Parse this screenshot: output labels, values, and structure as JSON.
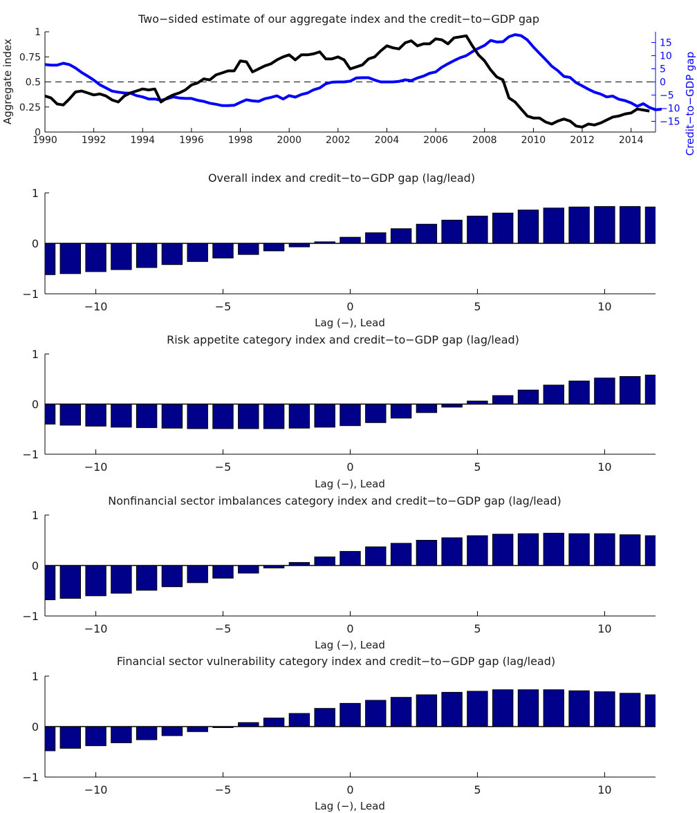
{
  "chart_data": [
    {
      "type": "line",
      "title": "Two−sided estimate of our aggregate index and the credit−to−GDP gap",
      "xlabel": "",
      "ylabel": "Aggregate index",
      "ylabel_right": "Credit−to−GDP gap",
      "xlim": [
        1990,
        2015
      ],
      "ylim": [
        0,
        1
      ],
      "ylim_right": [
        -19.08,
        19.08
      ],
      "x_ticks": [
        1990,
        1992,
        1994,
        1996,
        1998,
        2000,
        2002,
        2004,
        2006,
        2008,
        2010,
        2012,
        2014
      ],
      "y_ticks": [
        0,
        0.25,
        0.5,
        0.75,
        1
      ],
      "y_tick_labels": [
        "0",
        "0.25",
        "0.5",
        "0.75",
        "1"
      ],
      "y_ticks_right": [
        -15,
        -10,
        -5,
        0,
        5,
        10,
        15
      ],
      "y_tick_labels_right": [
        "−15",
        "−10",
        "−5",
        "0",
        "5",
        "10",
        "15"
      ],
      "reference_line": {
        "y": 0.5,
        "style": "dashed",
        "color": "#000000"
      },
      "grid": false,
      "x_start": 1990,
      "x_step": 0.25,
      "series": [
        {
          "name": "Aggregate index",
          "axis": "left",
          "color": "#000000",
          "values": [
            0.36,
            0.34,
            0.28,
            0.27,
            0.33,
            0.4,
            0.41,
            0.39,
            0.37,
            0.38,
            0.36,
            0.32,
            0.3,
            0.36,
            0.39,
            0.41,
            0.43,
            0.42,
            0.43,
            0.3,
            0.34,
            0.37,
            0.39,
            0.42,
            0.47,
            0.49,
            0.53,
            0.52,
            0.57,
            0.59,
            0.61,
            0.61,
            0.71,
            0.7,
            0.6,
            0.63,
            0.66,
            0.68,
            0.72,
            0.75,
            0.77,
            0.72,
            0.77,
            0.77,
            0.78,
            0.8,
            0.73,
            0.73,
            0.75,
            0.72,
            0.63,
            0.65,
            0.67,
            0.73,
            0.75,
            0.81,
            0.86,
            0.84,
            0.83,
            0.89,
            0.91,
            0.86,
            0.88,
            0.88,
            0.93,
            0.92,
            0.88,
            0.94,
            0.95,
            0.96,
            0.86,
            0.77,
            0.71,
            0.62,
            0.55,
            0.52,
            0.34,
            0.3,
            0.23,
            0.16,
            0.14,
            0.14,
            0.1,
            0.08,
            0.11,
            0.13,
            0.11,
            0.06,
            0.05,
            0.08,
            0.07,
            0.09,
            0.12,
            0.15,
            0.16,
            0.18,
            0.19,
            0.23,
            0.22,
            0.21
          ]
        },
        {
          "name": "Credit-to-GDP gap",
          "axis": "right",
          "color": "#0000ff",
          "values": [
            6.6,
            6.4,
            6.4,
            7.1,
            6.6,
            5.3,
            3.6,
            2.2,
            0.7,
            -1.1,
            -2.3,
            -3.5,
            -3.9,
            -4.2,
            -4.3,
            -5.2,
            -5.7,
            -6.5,
            -6.5,
            -7.0,
            -6.4,
            -5.7,
            -6.1,
            -6.3,
            -6.3,
            -7.0,
            -7.4,
            -8.1,
            -8.5,
            -9.0,
            -9.0,
            -8.9,
            -7.8,
            -6.8,
            -7.2,
            -7.4,
            -6.4,
            -5.9,
            -5.3,
            -6.5,
            -5.2,
            -5.8,
            -4.8,
            -4.2,
            -3.0,
            -2.3,
            -0.7,
            -0.1,
            0.0,
            0.0,
            0.3,
            1.5,
            1.6,
            1.6,
            0.7,
            0.0,
            0.0,
            0.0,
            0.2,
            0.8,
            0.5,
            1.5,
            2.2,
            3.3,
            3.8,
            5.6,
            6.9,
            8.1,
            9.2,
            10.0,
            11.5,
            12.8,
            13.9,
            15.8,
            15.2,
            15.3,
            17.2,
            18.0,
            17.6,
            16.0,
            13.3,
            10.9,
            8.5,
            6.0,
            4.3,
            2.1,
            1.7,
            -0.3,
            -1.5,
            -2.8,
            -3.9,
            -4.6,
            -5.7,
            -5.4,
            -6.6,
            -7.1,
            -8.0,
            -9.3,
            -8.3,
            -9.7,
            -10.6,
            -10.4
          ]
        }
      ]
    },
    {
      "type": "bar",
      "title": "Overall index and credit−to−GDP gap (lag/lead)",
      "xlabel": "Lag (−), Lead",
      "ylabel": "",
      "xlim": [
        -12,
        12
      ],
      "ylim": [
        -1,
        1
      ],
      "x_ticks": [
        -10,
        -5,
        0,
        5,
        10
      ],
      "x_tick_labels": [
        "−10",
        "−5",
        "0",
        "5",
        "10"
      ],
      "y_ticks": [
        -1,
        0,
        1
      ],
      "y_tick_labels": [
        "−1",
        "0",
        "1"
      ],
      "grid": false,
      "bar_color": "#00008b",
      "categories": [
        -12,
        -11,
        -10,
        -9,
        -8,
        -7,
        -6,
        -5,
        -4,
        -3,
        -2,
        -1,
        0,
        1,
        2,
        3,
        4,
        5,
        6,
        7,
        8,
        9,
        10,
        11,
        12
      ],
      "values": [
        -0.62,
        -0.6,
        -0.56,
        -0.52,
        -0.48,
        -0.42,
        -0.36,
        -0.29,
        -0.22,
        -0.15,
        -0.07,
        0.03,
        0.12,
        0.21,
        0.29,
        0.38,
        0.46,
        0.54,
        0.6,
        0.66,
        0.7,
        0.72,
        0.73,
        0.73,
        0.72
      ]
    },
    {
      "type": "bar",
      "title": "Risk appetite category index and credit−to−GDP gap (lag/lead)",
      "xlabel": "Lag (−), Lead",
      "ylabel": "",
      "xlim": [
        -12,
        12
      ],
      "ylim": [
        -1,
        1
      ],
      "x_ticks": [
        -10,
        -5,
        0,
        5,
        10
      ],
      "x_tick_labels": [
        "−10",
        "−5",
        "0",
        "5",
        "10"
      ],
      "y_ticks": [
        -1,
        0,
        1
      ],
      "y_tick_labels": [
        "−1",
        "0",
        "1"
      ],
      "grid": false,
      "bar_color": "#00008b",
      "categories": [
        -12,
        -11,
        -10,
        -9,
        -8,
        -7,
        -6,
        -5,
        -4,
        -3,
        -2,
        -1,
        0,
        1,
        2,
        3,
        4,
        5,
        6,
        7,
        8,
        9,
        10,
        11,
        12
      ],
      "values": [
        -0.4,
        -0.42,
        -0.44,
        -0.46,
        -0.47,
        -0.48,
        -0.49,
        -0.49,
        -0.49,
        -0.49,
        -0.48,
        -0.46,
        -0.43,
        -0.37,
        -0.28,
        -0.17,
        -0.06,
        0.06,
        0.17,
        0.28,
        0.38,
        0.46,
        0.52,
        0.55,
        0.58
      ]
    },
    {
      "type": "bar",
      "title": "Nonfinancial sector imbalances category index and credit−to−GDP gap (lag/lead)",
      "xlabel": "Lag (−), Lead",
      "ylabel": "",
      "xlim": [
        -12,
        12
      ],
      "ylim": [
        -1,
        1
      ],
      "x_ticks": [
        -10,
        -5,
        0,
        5,
        10
      ],
      "x_tick_labels": [
        "−10",
        "−5",
        "0",
        "5",
        "10"
      ],
      "y_ticks": [
        -1,
        0,
        1
      ],
      "y_tick_labels": [
        "−1",
        "0",
        "1"
      ],
      "grid": false,
      "bar_color": "#00008b",
      "categories": [
        -12,
        -11,
        -10,
        -9,
        -8,
        -7,
        -6,
        -5,
        -4,
        -3,
        -2,
        -1,
        0,
        1,
        2,
        3,
        4,
        5,
        6,
        7,
        8,
        9,
        10,
        11,
        12
      ],
      "values": [
        -0.68,
        -0.65,
        -0.6,
        -0.55,
        -0.49,
        -0.42,
        -0.34,
        -0.25,
        -0.15,
        -0.05,
        0.06,
        0.17,
        0.28,
        0.37,
        0.44,
        0.5,
        0.55,
        0.59,
        0.62,
        0.63,
        0.64,
        0.63,
        0.63,
        0.61,
        0.59
      ]
    },
    {
      "type": "bar",
      "title": "Financial sector vulnerability category index and credit−to−GDP gap (lag/lead)",
      "xlabel": "Lag (−), Lead",
      "ylabel": "",
      "xlim": [
        -12,
        12
      ],
      "ylim": [
        -1,
        1
      ],
      "x_ticks": [
        -10,
        -5,
        0,
        5,
        10
      ],
      "x_tick_labels": [
        "−10",
        "−5",
        "0",
        "5",
        "10"
      ],
      "y_ticks": [
        -1,
        0,
        1
      ],
      "y_tick_labels": [
        "−1",
        "0",
        "1"
      ],
      "grid": false,
      "bar_color": "#00008b",
      "categories": [
        -12,
        -11,
        -10,
        -9,
        -8,
        -7,
        -6,
        -5,
        -4,
        -3,
        -2,
        -1,
        0,
        1,
        2,
        3,
        4,
        5,
        6,
        7,
        8,
        9,
        10,
        11,
        12
      ],
      "values": [
        -0.48,
        -0.43,
        -0.38,
        -0.32,
        -0.26,
        -0.18,
        -0.1,
        -0.02,
        0.08,
        0.17,
        0.26,
        0.36,
        0.46,
        0.52,
        0.58,
        0.63,
        0.68,
        0.7,
        0.73,
        0.73,
        0.73,
        0.71,
        0.69,
        0.66,
        0.63
      ]
    }
  ]
}
